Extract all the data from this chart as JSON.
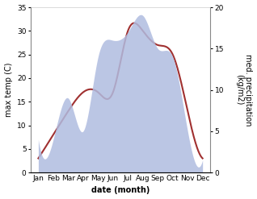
{
  "months": [
    "Jan",
    "Feb",
    "Mar",
    "Apr",
    "May",
    "Jun",
    "Jul",
    "Aug",
    "Sep",
    "Oct",
    "Nov",
    "Dec"
  ],
  "temperature": [
    3,
    8,
    13,
    17,
    17,
    17,
    30,
    30,
    27,
    25,
    13,
    3
  ],
  "precipitation": [
    4,
    4,
    9,
    5,
    14,
    16,
    17,
    19,
    15,
    14,
    5,
    1.5
  ],
  "temp_color": "#a03030",
  "precip_color": "#b0bce0",
  "temp_ylim": [
    0,
    35
  ],
  "precip_ylim": [
    0,
    20
  ],
  "temp_yticks": [
    0,
    5,
    10,
    15,
    20,
    25,
    30,
    35
  ],
  "precip_yticks": [
    0,
    5,
    10,
    15,
    20
  ],
  "xlabel": "date (month)",
  "ylabel_left": "max temp (C)",
  "ylabel_right": "med. precipitation\n(kg/m2)",
  "bg_color": "#ffffff",
  "label_fontsize": 7,
  "tick_fontsize": 6.5
}
